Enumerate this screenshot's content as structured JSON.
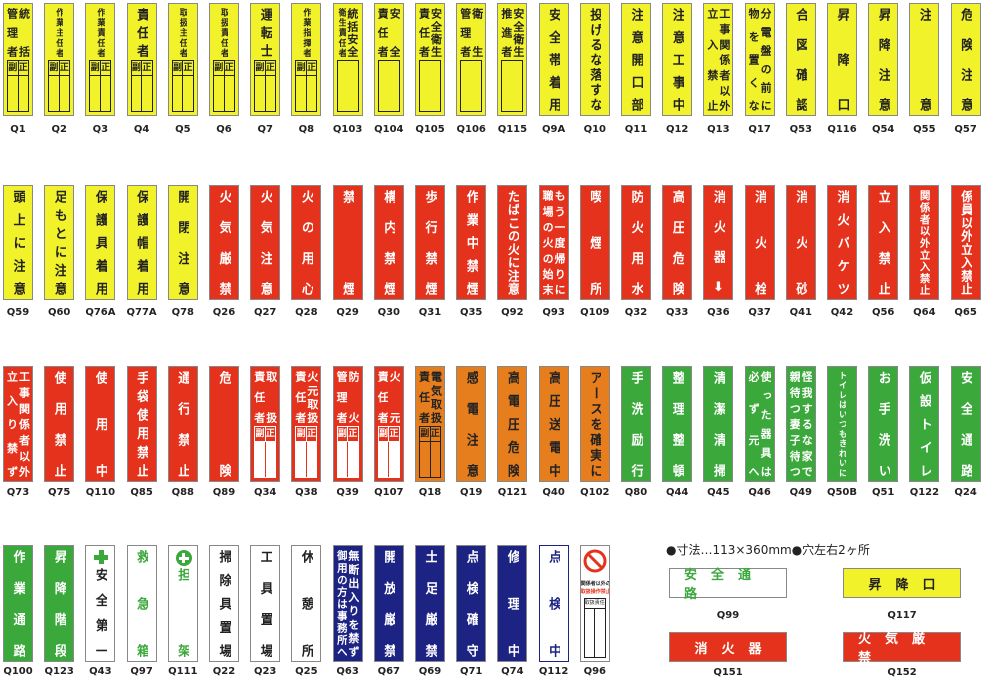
{
  "colors": {
    "Y": {
      "bg": "#f2f22a",
      "fg": "#222222"
    },
    "R": {
      "bg": "#e4321c",
      "fg": "#ffffff"
    },
    "O": {
      "bg": "#e67e1e",
      "fg": "#222222"
    },
    "G": {
      "bg": "#3aa83a",
      "fg": "#ffffff"
    },
    "W": {
      "bg": "#ffffff",
      "fg": "#222222"
    },
    "WG": {
      "bg": "#ffffff",
      "fg": "#3aa83a"
    },
    "WN": {
      "bg": "#ffffff",
      "fg": "#1d2383"
    },
    "N": {
      "bg": "#1d2383",
      "fg": "#ffffff"
    }
  },
  "box_labels": [
    "副",
    "正"
  ],
  "rows": [
    [
      {
        "code": "Q1",
        "c": "Y",
        "cols": [
          "統括",
          "管理者"
        ],
        "box": "split"
      },
      {
        "code": "Q2",
        "c": "Y",
        "cols": [
          "作業主任者"
        ],
        "box": "split"
      },
      {
        "code": "Q3",
        "c": "Y",
        "cols": [
          "作業責任者"
        ],
        "box": "split"
      },
      {
        "code": "Q4",
        "c": "Y",
        "cols": [
          "責任者"
        ],
        "box": "split"
      },
      {
        "code": "Q5",
        "c": "Y",
        "cols": [
          "取扱主任者"
        ],
        "box": "split"
      },
      {
        "code": "Q6",
        "c": "Y",
        "cols": [
          "取扱責任者"
        ],
        "box": "split"
      },
      {
        "code": "Q7",
        "c": "Y",
        "cols": [
          "運転士"
        ],
        "box": "split"
      },
      {
        "code": "Q8",
        "c": "Y",
        "cols": [
          "作業指揮者"
        ],
        "box": "split"
      },
      {
        "code": "Q103",
        "c": "Y",
        "cols": [
          "統括安全",
          "衛生責任者"
        ],
        "box": "empty"
      },
      {
        "code": "Q104",
        "c": "Y",
        "cols": [
          "安全",
          "責任者"
        ],
        "box": "empty"
      },
      {
        "code": "Q105",
        "c": "Y",
        "cols": [
          "安全衛生",
          "責任者"
        ],
        "box": "empty"
      },
      {
        "code": "Q106",
        "c": "Y",
        "cols": [
          "衛生",
          "管理者"
        ],
        "box": "empty"
      },
      {
        "code": "Q115",
        "c": "Y",
        "cols": [
          "安全衛生",
          "推進者"
        ],
        "box": "empty"
      },
      {
        "code": "Q9A",
        "c": "Y",
        "cols": [
          "安全帯着用"
        ]
      },
      {
        "code": "Q10",
        "c": "Y",
        "cols": [
          "投げるな落すな"
        ]
      },
      {
        "code": "Q11",
        "c": "Y",
        "cols": [
          "注意開口部"
        ]
      },
      {
        "code": "Q12",
        "c": "Y",
        "cols": [
          "注意工事中"
        ]
      },
      {
        "code": "Q13",
        "c": "Y",
        "cols": [
          "工事関係者以外",
          "立入禁止"
        ]
      },
      {
        "code": "Q17",
        "c": "Y",
        "cols": [
          "分電盤の前に",
          "物を置くな"
        ]
      },
      {
        "code": "Q53",
        "c": "Y",
        "cols": [
          "合図確認"
        ]
      },
      {
        "code": "Q116",
        "c": "Y",
        "cols": [
          "昇降口"
        ]
      },
      {
        "code": "Q54",
        "c": "Y",
        "cols": [
          "昇降注意"
        ]
      },
      {
        "code": "Q55",
        "c": "Y",
        "cols": [
          "注意"
        ]
      },
      {
        "code": "Q57",
        "c": "Y",
        "cols": [
          "危険注意"
        ]
      }
    ],
    [
      {
        "code": "Q59",
        "c": "Y",
        "cols": [
          "頭上に注意"
        ]
      },
      {
        "code": "Q60",
        "c": "Y",
        "cols": [
          "足もとに注意"
        ]
      },
      {
        "code": "Q76A",
        "c": "Y",
        "cols": [
          "保護具着用"
        ]
      },
      {
        "code": "Q77A",
        "c": "Y",
        "cols": [
          "保護帽着用"
        ]
      },
      {
        "code": "Q78",
        "c": "Y",
        "cols": [
          "開閉注意"
        ]
      },
      {
        "code": "Q26",
        "c": "R",
        "cols": [
          "火気厳禁"
        ]
      },
      {
        "code": "Q27",
        "c": "R",
        "cols": [
          "火気注意"
        ]
      },
      {
        "code": "Q28",
        "c": "R",
        "cols": [
          "火の用心"
        ]
      },
      {
        "code": "Q29",
        "c": "R",
        "cols": [
          "禁煙"
        ]
      },
      {
        "code": "Q30",
        "c": "R",
        "cols": [
          "構内禁煙"
        ]
      },
      {
        "code": "Q31",
        "c": "R",
        "cols": [
          "歩行禁煙"
        ]
      },
      {
        "code": "Q35",
        "c": "R",
        "cols": [
          "作業中禁煙"
        ]
      },
      {
        "code": "Q92",
        "c": "R",
        "cols": [
          "たばこの火に注意"
        ]
      },
      {
        "code": "Q93",
        "c": "R",
        "cols": [
          "もう一度帰りに",
          "職場の火の始末"
        ]
      },
      {
        "code": "Q109",
        "c": "R",
        "cols": [
          "喫煙所"
        ]
      },
      {
        "code": "Q32",
        "c": "R",
        "cols": [
          "防火用水"
        ]
      },
      {
        "code": "Q33",
        "c": "R",
        "cols": [
          "高圧危険"
        ]
      },
      {
        "code": "Q36",
        "c": "R",
        "cols": [
          "消火器⬇"
        ]
      },
      {
        "code": "Q37",
        "c": "R",
        "cols": [
          "消火栓"
        ]
      },
      {
        "code": "Q41",
        "c": "R",
        "cols": [
          "消火砂"
        ]
      },
      {
        "code": "Q42",
        "c": "R",
        "cols": [
          "消火バケツ"
        ]
      },
      {
        "code": "Q56",
        "c": "R",
        "cols": [
          "立入禁止"
        ]
      },
      {
        "code": "Q64",
        "c": "R",
        "cols": [
          "関係者以外立入禁止"
        ]
      },
      {
        "code": "Q65",
        "c": "R",
        "cols": [
          "係員以外立入禁止"
        ]
      }
    ],
    [
      {
        "code": "Q73",
        "c": "R",
        "cols": [
          "工事関係者以外",
          "立入り禁ず"
        ]
      },
      {
        "code": "Q75",
        "c": "R",
        "cols": [
          "使用禁止"
        ]
      },
      {
        "code": "Q110",
        "c": "R",
        "cols": [
          "使用中"
        ]
      },
      {
        "code": "Q85",
        "c": "R",
        "cols": [
          "手袋使用禁止"
        ]
      },
      {
        "code": "Q88",
        "c": "R",
        "cols": [
          "通行禁止"
        ]
      },
      {
        "code": "Q89",
        "c": "R",
        "cols": [
          "危険"
        ]
      },
      {
        "code": "Q34",
        "c": "R",
        "cols": [
          "取扱",
          "責任者"
        ],
        "box": "split",
        "boxwhite": true
      },
      {
        "code": "Q38",
        "c": "R",
        "cols": [
          "火元取扱",
          "責任者"
        ],
        "box": "split",
        "boxwhite": true
      },
      {
        "code": "Q39",
        "c": "R",
        "cols": [
          "防火",
          "管理者"
        ],
        "box": "split",
        "boxwhite": true
      },
      {
        "code": "Q107",
        "c": "R",
        "cols": [
          "火元",
          "責任者"
        ],
        "box": "split",
        "boxwhite": true
      },
      {
        "code": "Q18",
        "c": "O",
        "cols": [
          "電気取扱",
          "責任者"
        ],
        "box": "split"
      },
      {
        "code": "Q19",
        "c": "O",
        "cols": [
          "感電注意"
        ]
      },
      {
        "code": "Q121",
        "c": "O",
        "cols": [
          "高電圧危険"
        ]
      },
      {
        "code": "Q40",
        "c": "O",
        "cols": [
          "高圧送電中"
        ]
      },
      {
        "code": "Q102",
        "c": "O",
        "cols": [
          "アースを確実に"
        ]
      },
      {
        "code": "Q80",
        "c": "G",
        "cols": [
          "手洗励行"
        ]
      },
      {
        "code": "Q44",
        "c": "G",
        "cols": [
          "整理整頓"
        ]
      },
      {
        "code": "Q45",
        "c": "G",
        "cols": [
          "清潔清掃"
        ]
      },
      {
        "code": "Q46",
        "c": "G",
        "cols": [
          "使った器具は",
          "必ず元へ"
        ]
      },
      {
        "code": "Q49",
        "c": "G",
        "cols": [
          "怪我するな家で",
          "親待つ妻子待つ"
        ]
      },
      {
        "code": "Q50B",
        "c": "G",
        "cols": [
          "トイレはいつもきれいに"
        ]
      },
      {
        "code": "Q51",
        "c": "G",
        "cols": [
          "お手洗い"
        ]
      },
      {
        "code": "Q122",
        "c": "G",
        "cols": [
          "仮設トイレ"
        ]
      },
      {
        "code": "Q24",
        "c": "G",
        "cols": [
          "安全通路"
        ]
      }
    ],
    [
      {
        "code": "Q100",
        "c": "G",
        "cols": [
          "作業通路"
        ]
      },
      {
        "code": "Q123",
        "c": "G",
        "cols": [
          "昇降階段"
        ]
      },
      {
        "code": "Q43",
        "c": "W",
        "cols": [
          "安全第一"
        ],
        "icon": "green-cross"
      },
      {
        "code": "Q97",
        "c": "WG",
        "cols": [
          "救急箱"
        ]
      },
      {
        "code": "Q111",
        "c": "WG",
        "cols": [
          "担架"
        ],
        "icon": "green-circle-cross"
      },
      {
        "code": "Q22",
        "c": "W",
        "cols": [
          "掃除具置場"
        ]
      },
      {
        "code": "Q23",
        "c": "W",
        "cols": [
          "工具置場"
        ]
      },
      {
        "code": "Q25",
        "c": "W",
        "cols": [
          "休憩所"
        ]
      },
      {
        "code": "Q63",
        "c": "N",
        "cols": [
          "無断出入りを禁ず",
          "御用の方は事務所へ"
        ]
      },
      {
        "code": "Q67",
        "c": "N",
        "cols": [
          "開放厳禁"
        ]
      },
      {
        "code": "Q69",
        "c": "N",
        "cols": [
          "土足厳禁"
        ]
      },
      {
        "code": "Q71",
        "c": "N",
        "cols": [
          "点検確守"
        ]
      },
      {
        "code": "Q74",
        "c": "N",
        "cols": [
          "修理中"
        ]
      },
      {
        "code": "Q112",
        "c": "WN",
        "cols": [
          "点検中"
        ]
      },
      {
        "code": "Q96",
        "c": "W",
        "special": "prohibition",
        "lines": [
          "関係者以外の",
          "取扱操作禁止"
        ],
        "box_title": "取扱責任者"
      }
    ]
  ],
  "note": "●寸法…113×360mm●穴左右2ヶ所",
  "horizontal": [
    {
      "code": "Q99",
      "c": "WG",
      "text": "安全通路"
    },
    {
      "code": "Q117",
      "c": "Y",
      "text": "昇降口"
    },
    {
      "code": "Q151",
      "c": "R",
      "text": "消火器"
    },
    {
      "code": "Q152",
      "c": "R",
      "text": "火気厳禁"
    }
  ]
}
